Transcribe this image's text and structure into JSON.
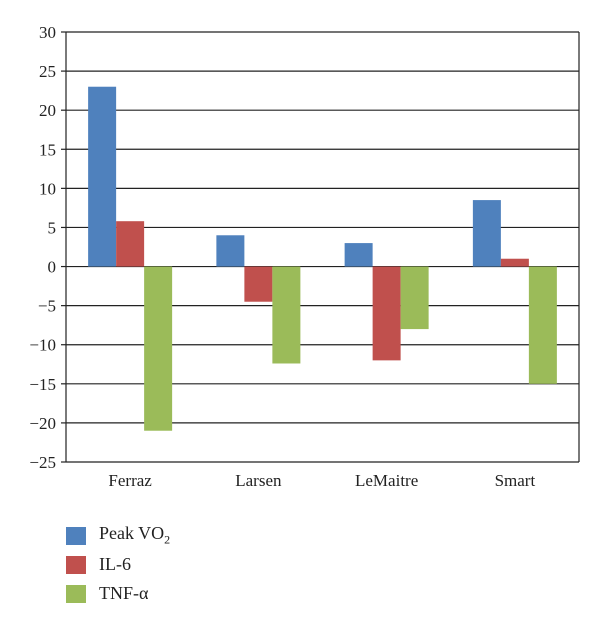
{
  "chart_data": {
    "type": "bar",
    "categories": [
      "Ferraz",
      "Larsen",
      "LeMaitre",
      "Smart"
    ],
    "series": [
      {
        "name": "Peak VO2",
        "label_main": "Peak VO",
        "label_sub": "2",
        "color": "#4f81bd",
        "values": [
          23,
          4,
          3,
          8.5
        ]
      },
      {
        "name": "IL-6",
        "label_main": "IL-6",
        "label_sub": "",
        "color": "#c0504d",
        "values": [
          5.8,
          -4.5,
          -12,
          1
        ]
      },
      {
        "name": "TNF-α",
        "label_main": "TNF-α",
        "label_sub": "",
        "color": "#9bbb59",
        "values": [
          -21,
          -12.4,
          -8,
          -15
        ]
      }
    ],
    "y_ticks": [
      30,
      25,
      20,
      15,
      10,
      5,
      0,
      -5,
      -10,
      -15,
      -20,
      -25
    ],
    "ylim": [
      -25,
      30
    ],
    "grid": true,
    "legend_position": "bottom-left"
  }
}
